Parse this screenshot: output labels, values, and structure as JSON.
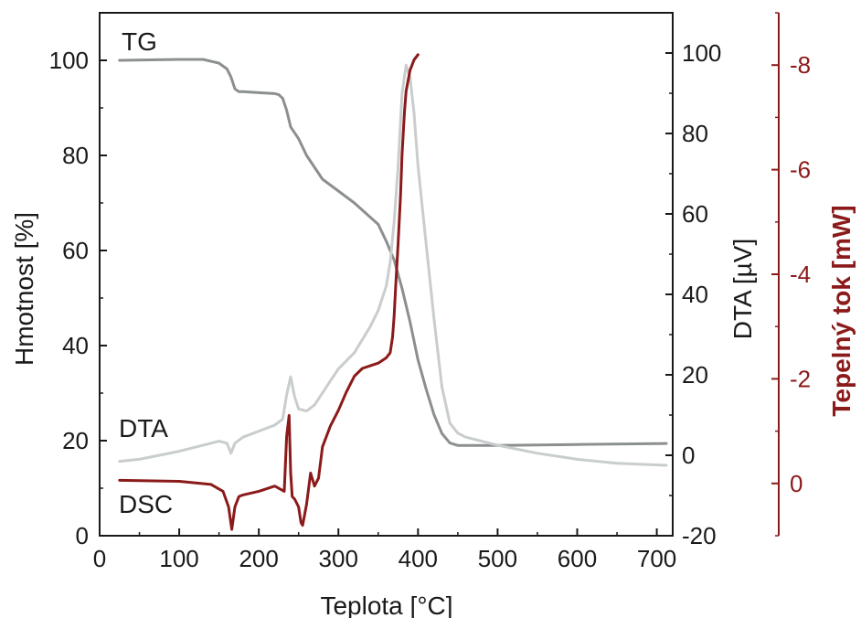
{
  "chart_data": {
    "type": "line",
    "x_axis": {
      "label": "Teplota [°C]",
      "range": [
        0,
        720
      ],
      "ticks": [
        0,
        100,
        200,
        300,
        400,
        500,
        600,
        700
      ]
    },
    "y_axes": {
      "left": {
        "label": "Hmotnost [%]",
        "range": [
          0,
          110
        ],
        "ticks": [
          0,
          20,
          40,
          60,
          80,
          100
        ]
      },
      "right_dta": {
        "label": "DTA [µV]",
        "range": [
          -20,
          110
        ],
        "ticks": [
          -20,
          0,
          20,
          40,
          60,
          80,
          100
        ]
      },
      "right_dsc": {
        "label": "Tepelný tok [mW]",
        "range": [
          1,
          -9
        ],
        "ticks": [
          0,
          -2,
          -4,
          -6,
          -8
        ],
        "tick_labels": [
          "0",
          "-2",
          "-4",
          "-6",
          "-8"
        ]
      }
    },
    "colors": {
      "TG": "#8c8f8f",
      "DTA": "#c9cdcd",
      "DSC": "#8b1a1a",
      "axis": "#1a1a1a",
      "dsc_axis": "#8b1a1a"
    },
    "series": [
      {
        "name": "TG",
        "axis": "left",
        "x": [
          25,
          100,
          130,
          150,
          160,
          165,
          170,
          175,
          180,
          200,
          220,
          225,
          230,
          235,
          240,
          250,
          260,
          270,
          280,
          300,
          320,
          340,
          350,
          360,
          370,
          380,
          390,
          400,
          410,
          420,
          430,
          440,
          450,
          460,
          500,
          600,
          712
        ],
        "y": [
          100,
          100.2,
          100.2,
          99.4,
          98.2,
          96.5,
          94,
          93.4,
          93.4,
          93.2,
          93,
          92.8,
          92,
          89.5,
          86,
          83.5,
          80,
          77.5,
          75,
          72.5,
          70,
          67,
          65.5,
          62,
          58,
          52,
          45,
          37,
          31,
          25.5,
          21.5,
          19.5,
          19,
          19,
          19,
          19.2,
          19.4
        ]
      },
      {
        "name": "DTA",
        "axis": "right_dta",
        "x": [
          25,
          50,
          100,
          120,
          140,
          150,
          160,
          165,
          170,
          180,
          200,
          220,
          230,
          235,
          240,
          245,
          250,
          260,
          270,
          280,
          290,
          300,
          320,
          340,
          350,
          360,
          365,
          370,
          375,
          380,
          385,
          390,
          395,
          400,
          410,
          420,
          430,
          440,
          450,
          460,
          480,
          500,
          550,
          600,
          650,
          712
        ],
        "y": [
          -1.5,
          -1,
          1,
          2,
          3,
          3.5,
          3,
          0.5,
          3,
          4.5,
          6,
          7.5,
          9,
          15,
          19.5,
          14.5,
          11.5,
          11,
          12.5,
          15.5,
          18.5,
          21.5,
          25.5,
          32,
          36,
          42,
          48,
          58,
          72,
          90,
          97,
          94,
          85,
          72,
          53,
          34,
          17,
          8,
          5.5,
          4.5,
          3.5,
          2.5,
          0.5,
          -1,
          -2,
          -2.5
        ]
      },
      {
        "name": "DSC",
        "axis": "right_dsc",
        "x": [
          25,
          100,
          140,
          155,
          162,
          166,
          170,
          175,
          180,
          200,
          220,
          232,
          235,
          238,
          240,
          242,
          245,
          250,
          253,
          255,
          260,
          265,
          270,
          275,
          280,
          290,
          300,
          310,
          320,
          330,
          340,
          350,
          360,
          365,
          368,
          370,
          372,
          375,
          378,
          380,
          383,
          385,
          390,
          395,
          400
        ],
        "y": [
          -0.06,
          -0.04,
          0.02,
          0.15,
          0.45,
          0.88,
          0.45,
          0.25,
          0.22,
          0.15,
          0.05,
          0.15,
          -0.9,
          -1.3,
          -0.2,
          0.25,
          0.3,
          0.45,
          0.75,
          0.8,
          0.4,
          -0.2,
          0.05,
          -0.1,
          -0.7,
          -1.1,
          -1.4,
          -1.75,
          -2.05,
          -2.2,
          -2.25,
          -2.3,
          -2.4,
          -2.5,
          -2.8,
          -3.2,
          -3.8,
          -4.6,
          -5.5,
          -6.3,
          -7.1,
          -7.5,
          -7.9,
          -8.1,
          -8.2
        ]
      }
    ],
    "series_labels": {
      "TG": "TG",
      "DTA": "DTA",
      "DSC": "DSC"
    }
  }
}
